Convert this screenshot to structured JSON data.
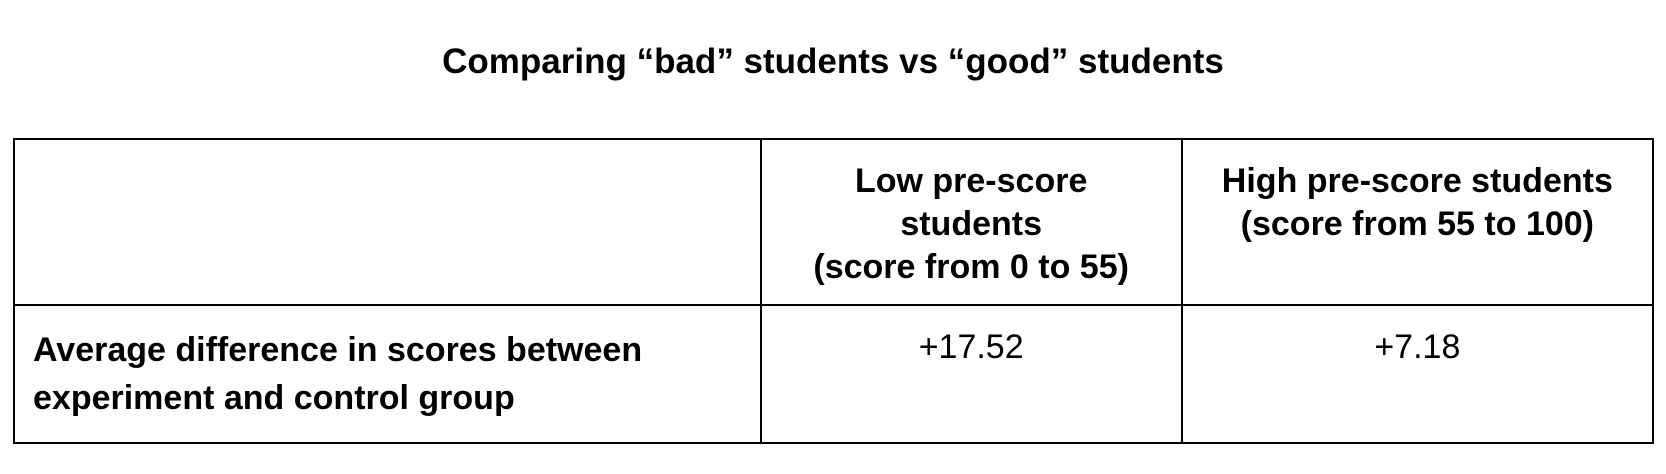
{
  "title": "Comparing “bad” students vs “good” students",
  "table": {
    "header": {
      "corner": "",
      "col_low": "Low pre-score\nstudents\n(score from 0 to 55)",
      "col_high": "High pre-score students\n(score from 55 to 100)"
    },
    "rows": [
      {
        "label": "Average difference in scores between experiment and control group",
        "low": "+17.52",
        "high": "+7.18"
      }
    ]
  }
}
